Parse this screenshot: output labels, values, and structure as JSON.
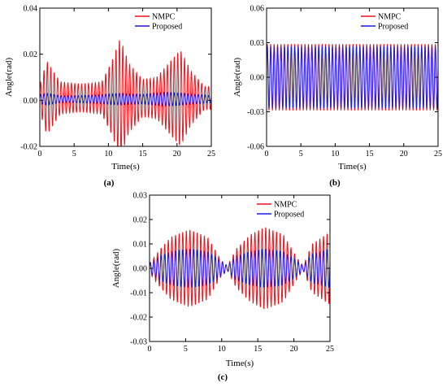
{
  "chart_data": [
    {
      "type": "line",
      "panel_label": "(a)",
      "xlabel": "Time(s)",
      "ylabel": "Angle(rad)",
      "xlim": [
        0,
        25
      ],
      "ylim": [
        -0.02,
        0.04
      ],
      "xticks": [
        "0",
        "5",
        "10",
        "15",
        "20",
        "25"
      ],
      "yticks": [
        "-0.02",
        "0.00",
        "0.02",
        "0.04"
      ],
      "legend_position": "top-right",
      "series": [
        {
          "name": "NMPC",
          "color": "#e8141c",
          "envelope": {
            "t": [
              0,
              1,
              3,
              6,
              9,
              10.5,
              11.7,
              13,
              15,
              17,
              19,
              20.5,
              22,
              24,
              25
            ],
            "amp": [
              0.006,
              0.016,
              0.007,
              0.006,
              0.007,
              0.016,
              0.026,
              0.015,
              0.008,
              0.009,
              0.016,
              0.021,
              0.012,
              0.005,
              0.005
            ]
          },
          "center": 0.001,
          "period_s": 0.5
        },
        {
          "name": "Proposed",
          "color": "#1c1ce0",
          "envelope": {
            "t": [
              0,
              1,
              3,
              6,
              9,
              12,
              15,
              18,
              21,
              25
            ],
            "amp": [
              0.002,
              0.0025,
              0.0015,
              0.0015,
              0.002,
              0.0025,
              0.002,
              0.003,
              0.0025,
              0.0015
            ]
          },
          "center": 0.0005,
          "period_s": 0.5
        }
      ]
    },
    {
      "type": "line",
      "panel_label": "(b)",
      "xlabel": "Time(s)",
      "ylabel": "Angle(rad)",
      "xlim": [
        0,
        25
      ],
      "ylim": [
        -0.06,
        0.06
      ],
      "xticks": [
        "0",
        "5",
        "10",
        "15",
        "20",
        "25"
      ],
      "yticks": [
        "-0.06",
        "-0.03",
        "0.00",
        "0.03",
        "0.06"
      ],
      "legend_position": "top-right",
      "series": [
        {
          "name": "NMPC",
          "color": "#e8141c",
          "envelope": {
            "t": [
              0,
              25
            ],
            "amp": [
              0.029,
              0.029
            ]
          },
          "center": 0.0,
          "period_s": 0.5
        },
        {
          "name": "Proposed",
          "color": "#1c1ce0",
          "envelope": {
            "t": [
              0,
              25
            ],
            "amp": [
              0.027,
              0.027
            ]
          },
          "center": 0.0,
          "period_s": 0.5
        }
      ]
    },
    {
      "type": "line",
      "panel_label": "(c)",
      "xlabel": "Time(s)",
      "ylabel": "Angle(rad)",
      "xlim": [
        0,
        25
      ],
      "ylim": [
        -0.03,
        0.03
      ],
      "xticks": [
        "0",
        "5",
        "10",
        "15",
        "20",
        "25"
      ],
      "yticks": [
        "-0.03",
        "-0.02",
        "-0.01",
        "0.00",
        "0.01",
        "0.02",
        "0.03"
      ],
      "legend_position": "top-right",
      "series": [
        {
          "name": "NMPC",
          "color": "#e8141c",
          "envelope": {
            "t": [
              0,
              1.5,
              3,
              5.5,
              8,
              10,
              10.8,
              12,
              14,
              16,
              18.5,
              20.5,
              21.3,
              22.5,
              25
            ],
            "amp": [
              0.002,
              0.008,
              0.013,
              0.016,
              0.013,
              0.003,
              0.001,
              0.008,
              0.014,
              0.017,
              0.014,
              0.004,
              0.001,
              0.01,
              0.015
            ]
          },
          "center": 0.0,
          "period_s": 0.5
        },
        {
          "name": "Proposed",
          "color": "#1c1ce0",
          "envelope": {
            "t": [
              0,
              1.5,
              3,
              5.5,
              8,
              10,
              10.8,
              12,
              14,
              16,
              18.5,
              20.5,
              21.3,
              22.5,
              25
            ],
            "amp": [
              0.002,
              0.005,
              0.007,
              0.008,
              0.007,
              0.003,
              0.001,
              0.005,
              0.007,
              0.008,
              0.007,
              0.003,
              0.001,
              0.006,
              0.008
            ]
          },
          "center": 0.0,
          "period_s": 0.5
        }
      ]
    }
  ]
}
